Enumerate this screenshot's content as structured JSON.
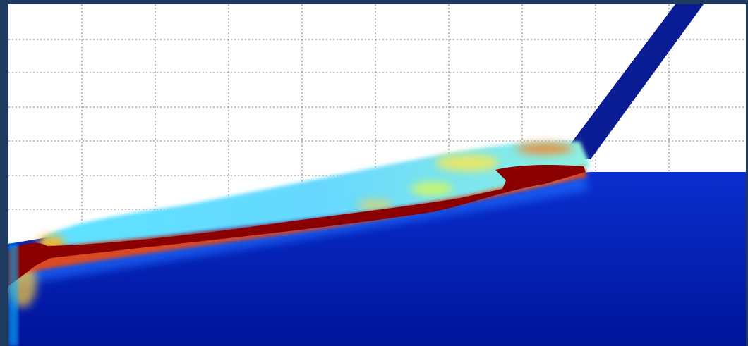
{
  "figure": {
    "kind": "field-plot",
    "colormap": "jet",
    "grid": true,
    "grid_style": "dotted",
    "colors": {
      "frame": "#1e3a5f",
      "background": "#ffffff",
      "grid": "#555555",
      "low": "#00008f",
      "mid_low": "#00c8ff",
      "mid": "#fffa00",
      "high": "#800000"
    }
  }
}
